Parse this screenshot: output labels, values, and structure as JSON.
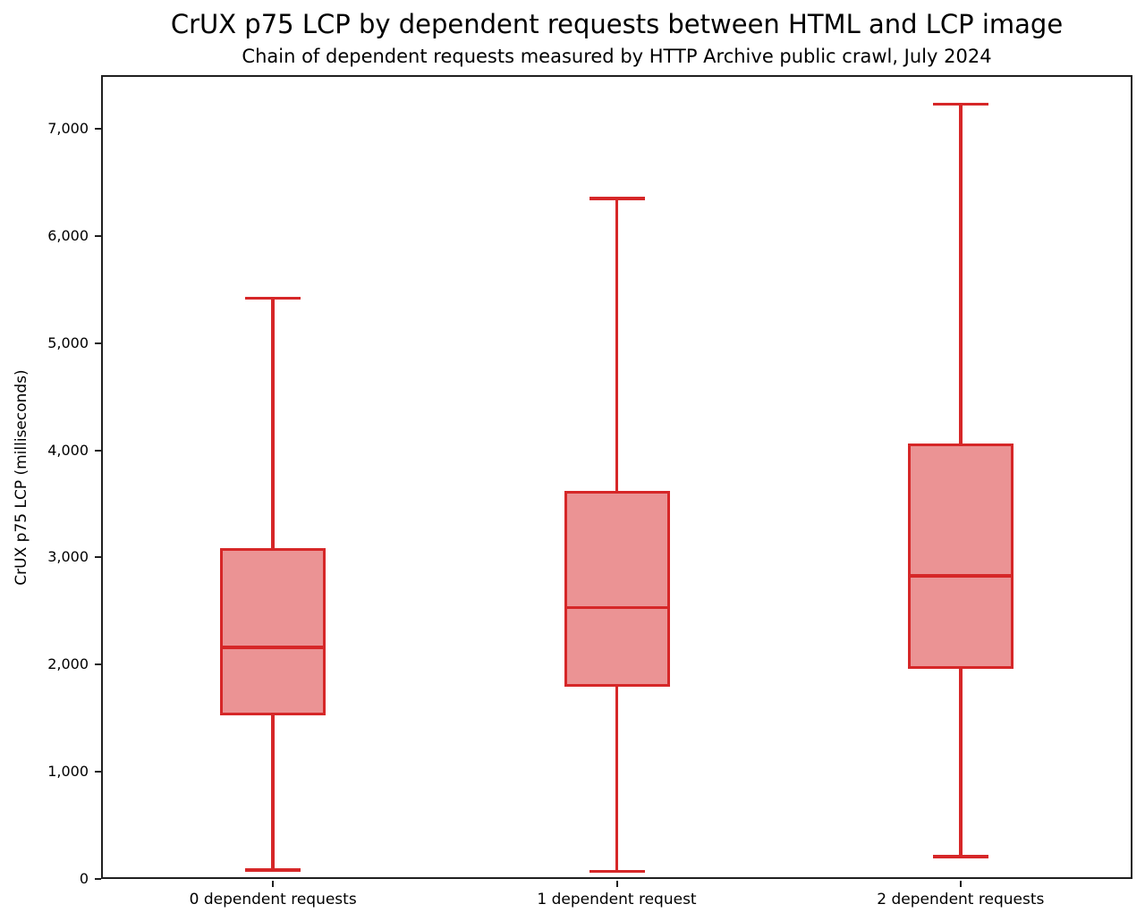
{
  "chart_data": {
    "type": "boxplot",
    "title": "CrUX p75 LCP by dependent requests between HTML and LCP image",
    "subtitle": "Chain of dependent requests measured by HTTP Archive public crawl, July 2024",
    "xlabel": "",
    "ylabel": "CrUX p75 LCP (milliseconds)",
    "ylim": [
      0,
      7500
    ],
    "yticks": [
      0,
      1000,
      2000,
      3000,
      4000,
      5000,
      6000,
      7000
    ],
    "ytick_labels": [
      "0",
      "1,000",
      "2,000",
      "3,000",
      "4,000",
      "5,000",
      "6,000",
      "7,000"
    ],
    "grid": false,
    "legend": null,
    "categories": [
      "0 dependent requests",
      "1 dependent request",
      "2 dependent requests"
    ],
    "series": [
      {
        "name": "0 dependent requests",
        "whisker_low": 85,
        "q1": 1530,
        "median": 2160,
        "q3": 3090,
        "whisker_high": 5420
      },
      {
        "name": "1 dependent request",
        "whisker_low": 70,
        "q1": 1790,
        "median": 2530,
        "q3": 3620,
        "whisker_high": 6350
      },
      {
        "name": "2 dependent requests",
        "whisker_low": 210,
        "q1": 1960,
        "median": 2830,
        "q3": 4060,
        "whisker_high": 7230
      }
    ],
    "colors": {
      "box_edge": "#d62728",
      "box_fill": "#eb9394",
      "median": "#d62728",
      "whisker": "#d62728",
      "axis": "#1f1f1f",
      "text": "#000000",
      "background": "#ffffff"
    }
  }
}
